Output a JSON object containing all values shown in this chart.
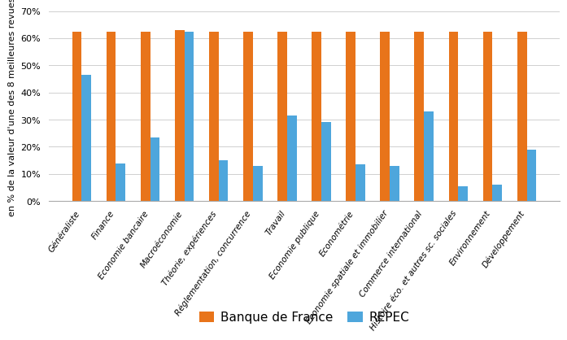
{
  "categories": [
    "Généraliste",
    "Finance",
    "Economie bancaire",
    "Macroéconomie",
    "Théorie, expériences",
    "Réglementation, concurrence",
    "Travail",
    "Economie publique",
    "Econométrie",
    "Economie spatiale et immobilier",
    "Commerce international",
    "Histoire éco. et autres sc. sociales",
    "Environnement",
    "Développement"
  ],
  "banque_de_france": [
    62.5,
    62.5,
    62.5,
    63.0,
    62.5,
    62.5,
    62.5,
    62.5,
    62.5,
    62.5,
    62.5,
    62.5,
    62.5,
    62.5
  ],
  "repec": [
    46.5,
    14.0,
    23.5,
    62.5,
    15.0,
    13.0,
    31.5,
    29.0,
    13.5,
    13.0,
    33.0,
    5.5,
    6.0,
    19.0
  ],
  "color_banque": "#E8741A",
  "color_repec": "#4EA6DC",
  "ylabel": "en % de la valeur d'une des 8 meilleures revues",
  "ylim": [
    0,
    70
  ],
  "yticks": [
    0,
    10,
    20,
    30,
    40,
    50,
    60,
    70
  ],
  "legend_banque": "Banque de France",
  "legend_repec": "REPEC",
  "background_color": "#ffffff",
  "grid_color": "#d0d0d0",
  "bar_width": 0.28,
  "ylabel_fontsize": 8,
  "xlabel_fontsize": 7.5,
  "legend_fontsize": 11
}
